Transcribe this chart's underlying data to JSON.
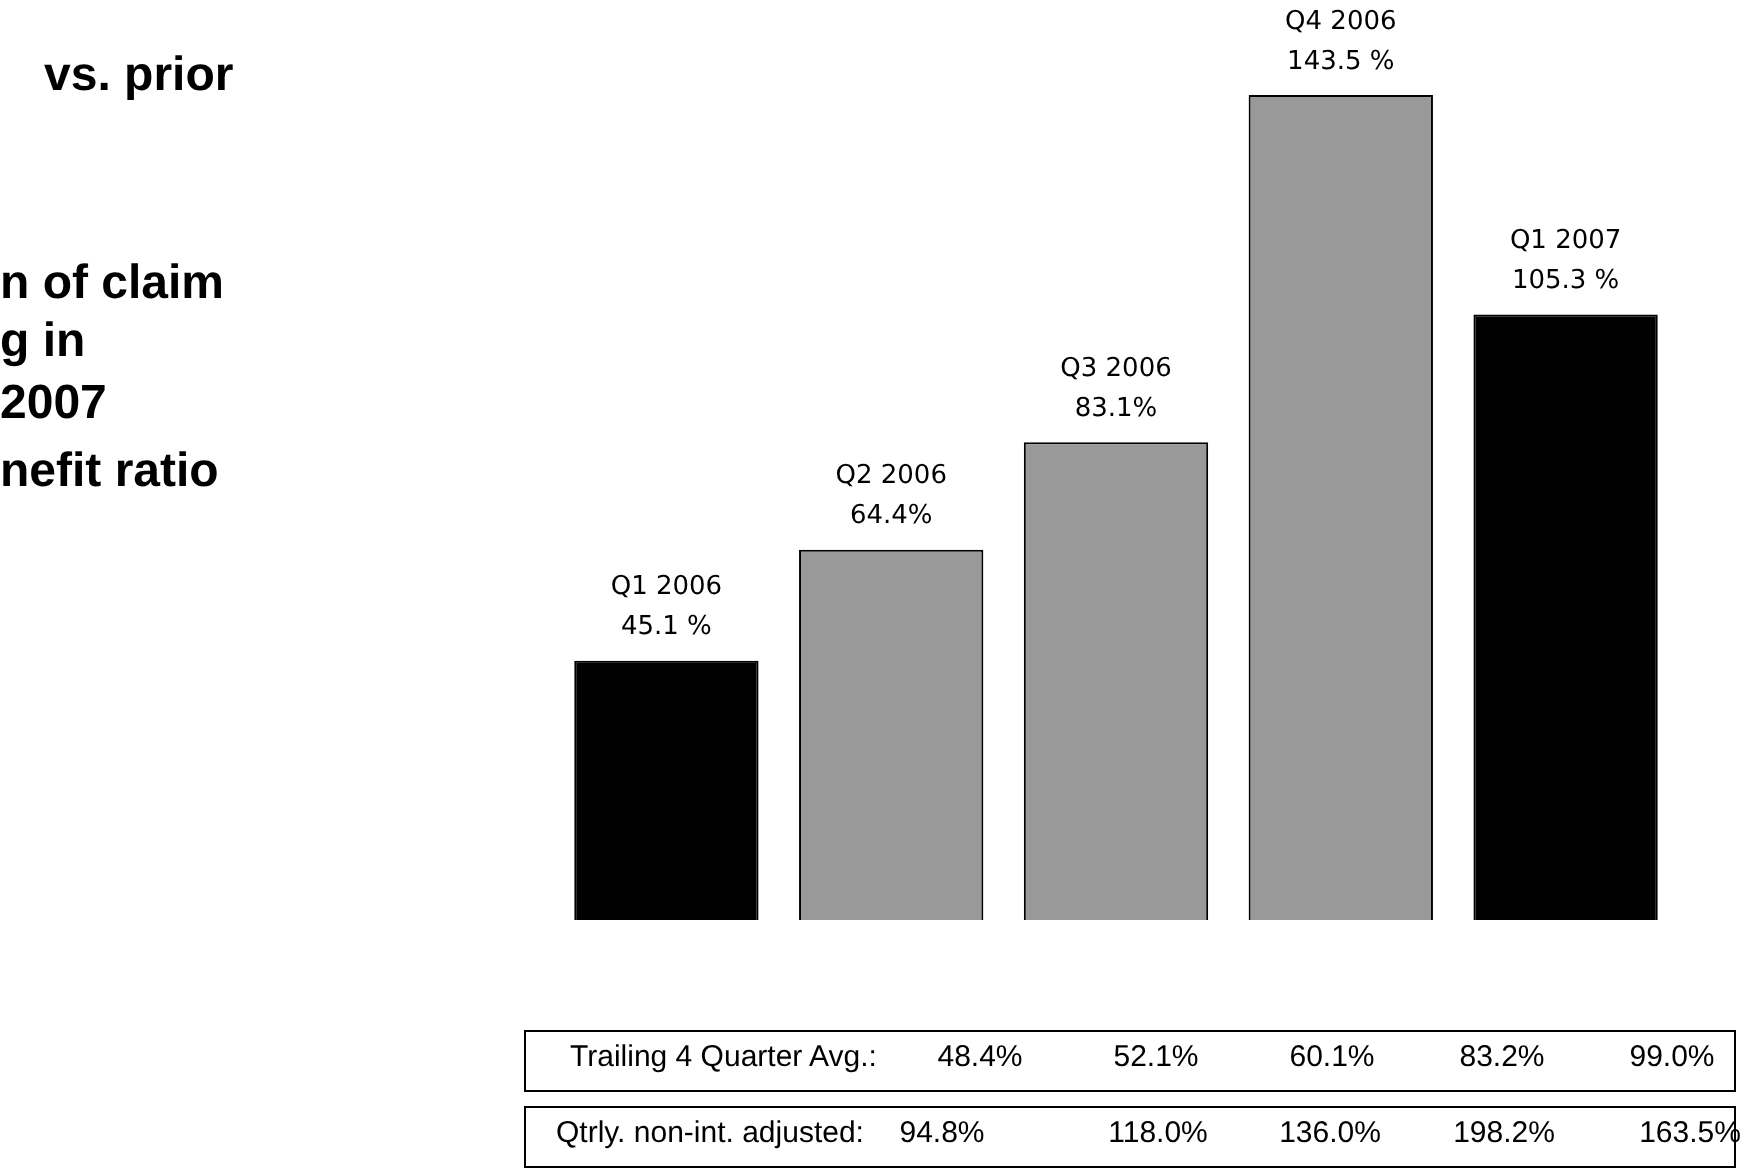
{
  "chart_data": {
    "type": "bar",
    "categories": [
      "Q1 2006",
      "Q2 2006",
      "Q3 2006",
      "Q4 2006",
      "Q1 2007"
    ],
    "values": [
      45.1,
      64.4,
      83.1,
      143.5,
      105.3
    ],
    "colors": [
      "#000000",
      "#999999",
      "#999999",
      "#999999",
      "#000000"
    ],
    "value_labels": [
      "45.1 %",
      "64.4%",
      "83.1%",
      "143.5 %",
      "105.3 %"
    ],
    "legend": false,
    "tick_labels": false,
    "annotations": [
      "vs. prior",
      "n of claim",
      "g in",
      "2007",
      "nefit ratio",
      "Trailing 4 Quarter Avg.:",
      "48.4%",
      "52.1%",
      "60.1%",
      "83.2%",
      "99.0%",
      "Qtrly. non-int. adjusted:",
      "94.8%",
      "118.0%",
      "136.0%",
      "198.2%",
      "163.5%"
    ]
  }
}
